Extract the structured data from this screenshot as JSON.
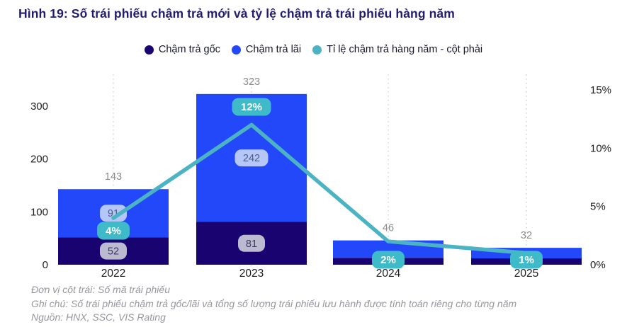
{
  "title": "Hình 19: Số trái phiếu chậm trả mới và tỷ lệ chậm trả trái phiếu hàng năm",
  "footnotes": {
    "unit": "Đơn vị cột trái: Số mã trái phiếu",
    "note": "Ghi chú: Số trái phiếu chậm trả gốc/lãi và tổng số lượng trái phiếu lưu hành được tính toán riêng cho từng năm",
    "source": "Nguồn: HNX, SSC, VIS Rating"
  },
  "chart_data": {
    "type": "bar",
    "subtype": "stacked-bars-with-line-on-right-axis",
    "categories": [
      "2022",
      "2023",
      "2024",
      "2025"
    ],
    "series": [
      {
        "name": "Chậm trả gốc",
        "type": "bar",
        "color": "#190370",
        "values": [
          52,
          81,
          13,
          12
        ],
        "labels": [
          "52",
          "81",
          null,
          null
        ],
        "label_bg": "#BBBAD1",
        "label_color": "#3B3960"
      },
      {
        "name": "Chậm trả lãi",
        "type": "bar",
        "color": "#2248FA",
        "values": [
          91,
          242,
          33,
          20
        ],
        "labels": [
          "91",
          "242",
          null,
          null
        ],
        "label_bg": "#B5C6F8",
        "label_color": "#4E5C84"
      },
      {
        "name": "Tỉ lệ chậm trả hàng năm - cột phải",
        "type": "line",
        "axis": "right",
        "color": "#4BB3C3",
        "values": [
          4,
          12,
          2,
          1
        ],
        "labels": [
          "4%",
          "12%",
          "2%",
          "1%"
        ],
        "label_bg": "#3FBAC9",
        "label_color": "#FFFFFF"
      }
    ],
    "totals": [
      143,
      323,
      46,
      32
    ],
    "left_axis": {
      "ticks": [
        0,
        100,
        200,
        300
      ],
      "range": [
        0,
        330
      ]
    },
    "right_axis": {
      "ticks": [
        0,
        5,
        10,
        15
      ],
      "suffix": "%",
      "range": [
        0,
        16.5
      ]
    },
    "grid": "vertical-dotted-at-category-centers",
    "legend_position": "top-center",
    "note": "2024/2025 stack splits estimated from bar pixel heights; only totals and rate labels are printed for those years"
  }
}
